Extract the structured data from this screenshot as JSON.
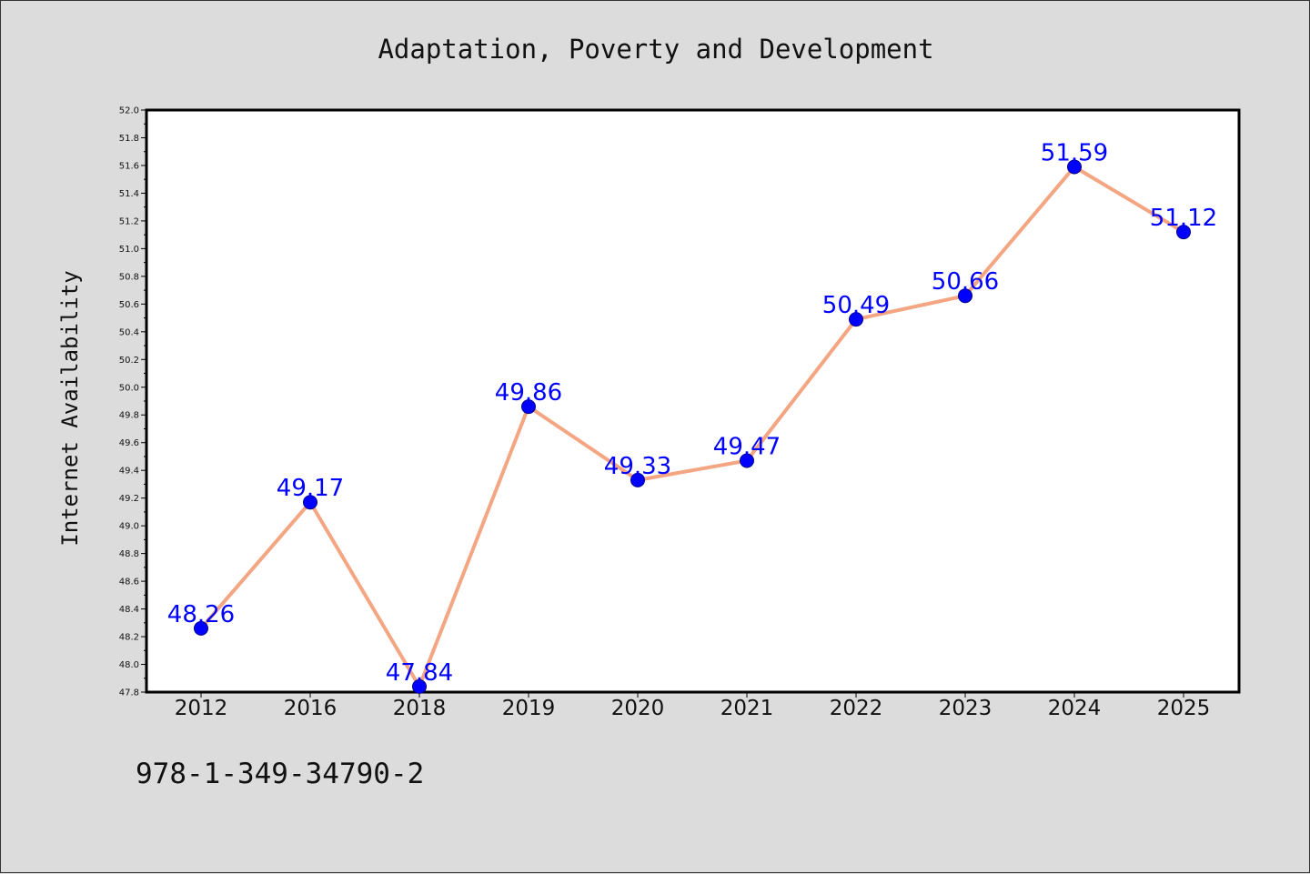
{
  "footnote": "978-1-349-34790-2",
  "colors": {
    "background": "#dcdcdc",
    "plot_area": "#ffffff",
    "line": "#f4a582",
    "marker": "#0000ff",
    "data_label": "#0000ff"
  },
  "chart_data": {
    "type": "line",
    "title": "Adaptation, Poverty and Development",
    "xlabel": "",
    "ylabel": "Internet Availability",
    "categories": [
      "2012",
      "2016",
      "2018",
      "2019",
      "2020",
      "2021",
      "2022",
      "2023",
      "2024",
      "2025"
    ],
    "series": [
      {
        "values": [
          48.26,
          49.17,
          47.84,
          49.86,
          49.33,
          49.47,
          50.49,
          50.66,
          51.59,
          51.12
        ],
        "data_labels": [
          "48.26",
          "49.17",
          "47.84",
          "49.86",
          "49.33",
          "49.47",
          "50.49",
          "50.66",
          "51.59",
          "51.12"
        ]
      }
    ],
    "ylim": [
      47.8,
      52.0
    ],
    "yticks": [
      "47.8",
      "48.0",
      "48.2",
      "48.4",
      "48.6",
      "48.8",
      "49.0",
      "49.2",
      "49.4",
      "49.6",
      "49.8",
      "50.0",
      "50.2",
      "50.4",
      "50.6",
      "50.8",
      "51.0",
      "51.2",
      "51.4",
      "51.6",
      "51.8",
      "52.0"
    ],
    "grid": false,
    "legend": "none",
    "markers": true
  }
}
